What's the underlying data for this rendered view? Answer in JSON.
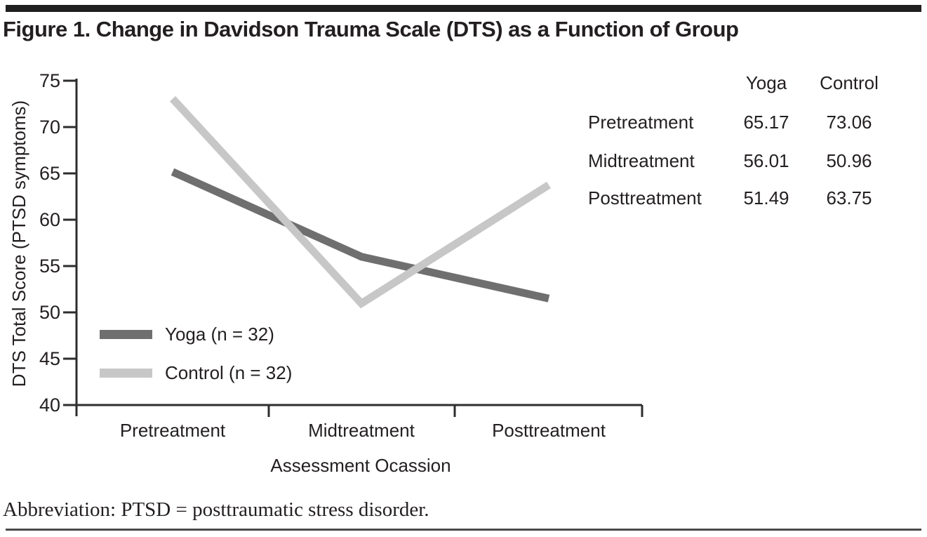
{
  "title": "Figure 1. Change in Davidson Trauma Scale (DTS) as a Function of Group",
  "footnote": "Abbreviation: PTSD = posttraumatic stress disorder.",
  "colors": {
    "yoga_line": "#6f6f6f",
    "control_line": "#c7c7c7",
    "axis": "#2d2d2d",
    "text": "#231f20",
    "top_bar": "#1f1f1f"
  },
  "chart_data": {
    "type": "line",
    "title": "",
    "xlabel": "Assessment Ocassion",
    "ylabel": "DTS Total Score (PTSD symptoms)",
    "categories": [
      "Pretreatment",
      "Midtreatment",
      "Posttreatment"
    ],
    "series": [
      {
        "name": "Yoga (n = 32)",
        "color": "#6f6f6f",
        "values": [
          65.17,
          56.01,
          51.49
        ]
      },
      {
        "name": "Control (n = 32)",
        "color": "#c7c7c7",
        "values": [
          73.06,
          50.96,
          63.75
        ]
      }
    ],
    "ylim": [
      40,
      75
    ],
    "yticks": [
      75,
      70,
      65,
      60,
      55,
      50,
      45,
      40
    ],
    "grid": false,
    "legend_position": "inside-bottom-left"
  },
  "side_table": {
    "col_headers": [
      "Yoga",
      "Control"
    ],
    "rows": [
      {
        "label": "Pretreatment",
        "yoga": "65.17",
        "control": "73.06"
      },
      {
        "label": "Midtreatment",
        "yoga": "56.01",
        "control": "50.96"
      },
      {
        "label": "Posttreatment",
        "yoga": "51.49",
        "control": "63.75"
      }
    ]
  }
}
